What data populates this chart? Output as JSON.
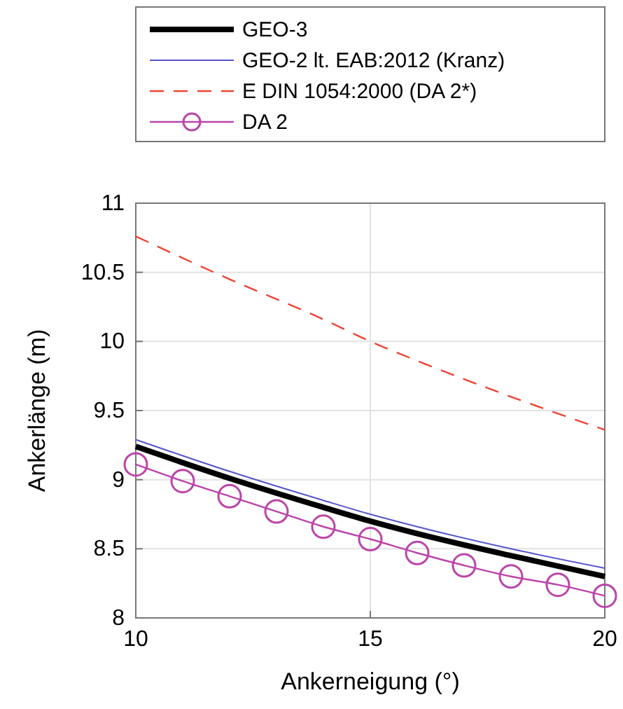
{
  "chart_data": {
    "type": "line",
    "xlabel": "Ankerneigung (°)",
    "ylabel": "Ankerlänge (m)",
    "xlim": [
      10,
      20
    ],
    "ylim": [
      8,
      11
    ],
    "xticks": [
      10,
      15,
      20
    ],
    "yticks": [
      8,
      8.5,
      9,
      9.5,
      10,
      10.5,
      11
    ],
    "grid": true,
    "legend": "top",
    "series": [
      {
        "name": "GEO-3",
        "color": "#000000",
        "x": [
          10,
          12,
          14,
          15,
          16,
          18,
          20
        ],
        "values": [
          9.24,
          9.01,
          8.8,
          8.7,
          8.61,
          8.45,
          8.3
        ],
        "line_style": "solid",
        "marker": "none"
      },
      {
        "name": "GEO-2 lt. EAB:2012 (Kranz)",
        "color": "#5555cc",
        "x": [
          10,
          12,
          14,
          15,
          16,
          18,
          20
        ],
        "values": [
          9.29,
          9.06,
          8.85,
          8.75,
          8.66,
          8.5,
          8.36
        ],
        "line_style": "solid",
        "marker": "none"
      },
      {
        "name": "E DIN 1054:2000 (DA 2*)",
        "color": "#ee4433",
        "x": [
          10,
          12,
          14,
          15,
          16,
          18,
          20
        ],
        "values": [
          10.76,
          10.45,
          10.16,
          10,
          9.86,
          9.6,
          9.36
        ],
        "line_style": "dashed",
        "marker": "none"
      },
      {
        "name": "DA 2",
        "color": "#bb44aa",
        "x": [
          10,
          11,
          12,
          13,
          14,
          15,
          16,
          17,
          18,
          19,
          20
        ],
        "values": [
          9.11,
          8.99,
          8.88,
          8.77,
          8.66,
          8.57,
          8.47,
          8.38,
          8.3,
          8.24,
          8.16
        ],
        "line_style": "solid",
        "marker": "circle"
      }
    ]
  }
}
